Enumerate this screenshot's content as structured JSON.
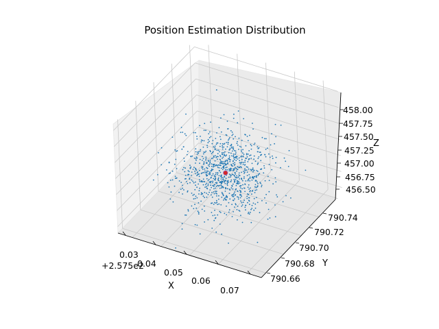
{
  "chart_data": {
    "type": "scatter",
    "projection": "3d",
    "title": "Position Estimation Distribution",
    "xlabel": "X",
    "ylabel": "Y",
    "zlabel": "Z",
    "x_offset_label": "+2.575e2",
    "x_ticks": [
      "0.03",
      "0.04",
      "0.05",
      "0.06",
      "0.07"
    ],
    "y_ticks": [
      "790.66",
      "790.68",
      "790.70",
      "790.72",
      "790.74"
    ],
    "z_ticks": [
      "456.50",
      "456.75",
      "457.00",
      "457.25",
      "457.50",
      "457.75",
      "458.00"
    ],
    "xlim": [
      257.525,
      257.575
    ],
    "ylim": [
      790.655,
      790.745
    ],
    "zlim": [
      456.4,
      458.1
    ],
    "grid": true,
    "point_color": "#1f77b4",
    "points_count_approx": 1000,
    "center_marker": {
      "x": 257.549,
      "y": 790.7,
      "z": 457.02,
      "color": "#d62728"
    }
  }
}
